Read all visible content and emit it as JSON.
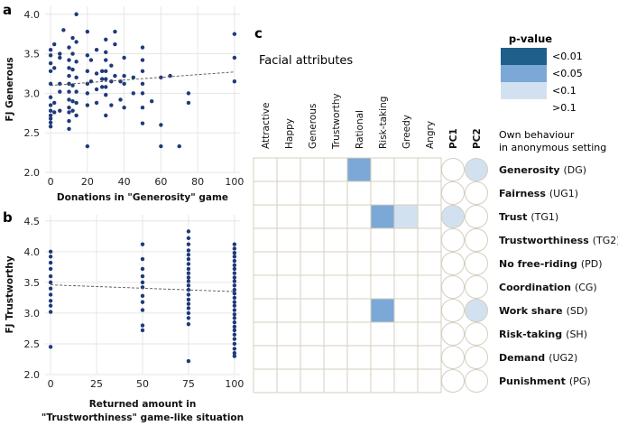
{
  "panel_labels": {
    "a": "a",
    "b": "b",
    "c": "c"
  },
  "chart_data": [
    {
      "type": "scatter",
      "id": "a",
      "xlabel": "Donations in \"Generosity\" game",
      "ylabel": "FJ Generous",
      "xlim": [
        -3,
        103
      ],
      "ylim": [
        2.0,
        4.1
      ],
      "xticks": [
        0,
        20,
        40,
        60,
        80,
        100
      ],
      "yticks": [
        2.0,
        2.5,
        3.0,
        3.5,
        4.0
      ],
      "ytick_labels": [
        "2.0",
        "2.5",
        "3.0",
        "3.5",
        "4.0"
      ],
      "trend": {
        "x": [
          0,
          100
        ],
        "y": [
          3.1,
          3.27
        ]
      },
      "points": [
        [
          0,
          3.55
        ],
        [
          0,
          3.48
        ],
        [
          0,
          3.38
        ],
        [
          0,
          3.28
        ],
        [
          0,
          3.12
        ],
        [
          0,
          2.95
        ],
        [
          0,
          2.85
        ],
        [
          0,
          2.78
        ],
        [
          0,
          2.72
        ],
        [
          0,
          2.68
        ],
        [
          0,
          2.63
        ],
        [
          0,
          2.58
        ],
        [
          2,
          3.62
        ],
        [
          2,
          3.32
        ],
        [
          2,
          2.88
        ],
        [
          2,
          2.76
        ],
        [
          5,
          3.5
        ],
        [
          5,
          3.45
        ],
        [
          5,
          3.12
        ],
        [
          5,
          3.02
        ],
        [
          5,
          2.78
        ],
        [
          7,
          3.8
        ],
        [
          10,
          3.58
        ],
        [
          10,
          3.42
        ],
        [
          10,
          3.32
        ],
        [
          10,
          3.22
        ],
        [
          10,
          3.12
        ],
        [
          10,
          3.02
        ],
        [
          10,
          2.92
        ],
        [
          10,
          2.82
        ],
        [
          10,
          2.76
        ],
        [
          10,
          2.65
        ],
        [
          10,
          2.55
        ],
        [
          12,
          3.7
        ],
        [
          12,
          3.5
        ],
        [
          12,
          3.3
        ],
        [
          12,
          3.1
        ],
        [
          12,
          2.9
        ],
        [
          12,
          2.78
        ],
        [
          14,
          4.0
        ],
        [
          14,
          3.65
        ],
        [
          14,
          3.4
        ],
        [
          14,
          3.2
        ],
        [
          14,
          3.02
        ],
        [
          14,
          2.88
        ],
        [
          14,
          2.72
        ],
        [
          20,
          3.78
        ],
        [
          20,
          3.48
        ],
        [
          20,
          3.28
        ],
        [
          20,
          3.12
        ],
        [
          20,
          3.0
        ],
        [
          20,
          2.85
        ],
        [
          20,
          2.33
        ],
        [
          22,
          3.42
        ],
        [
          22,
          3.15
        ],
        [
          25,
          3.55
        ],
        [
          25,
          3.25
        ],
        [
          25,
          3.05
        ],
        [
          25,
          2.88
        ],
        [
          28,
          3.28
        ],
        [
          28,
          3.18
        ],
        [
          28,
          3.08
        ],
        [
          30,
          3.68
        ],
        [
          30,
          3.52
        ],
        [
          30,
          3.42
        ],
        [
          30,
          3.28
        ],
        [
          30,
          3.18
        ],
        [
          30,
          3.08
        ],
        [
          30,
          2.98
        ],
        [
          30,
          2.72
        ],
        [
          33,
          3.35
        ],
        [
          33,
          3.15
        ],
        [
          33,
          2.85
        ],
        [
          35,
          3.78
        ],
        [
          35,
          3.62
        ],
        [
          35,
          3.22
        ],
        [
          38,
          3.15
        ],
        [
          38,
          2.92
        ],
        [
          40,
          3.45
        ],
        [
          40,
          3.22
        ],
        [
          40,
          3.12
        ],
        [
          40,
          2.82
        ],
        [
          45,
          3.2
        ],
        [
          45,
          3.0
        ],
        [
          50,
          3.58
        ],
        [
          50,
          3.42
        ],
        [
          50,
          3.28
        ],
        [
          50,
          3.12
        ],
        [
          50,
          3.0
        ],
        [
          50,
          2.82
        ],
        [
          50,
          2.62
        ],
        [
          55,
          2.9
        ],
        [
          60,
          3.2
        ],
        [
          60,
          2.6
        ],
        [
          60,
          2.33
        ],
        [
          65,
          3.22
        ],
        [
          70,
          2.33
        ],
        [
          75,
          3.0
        ],
        [
          75,
          2.88
        ],
        [
          100,
          3.75
        ],
        [
          100,
          3.45
        ],
        [
          100,
          3.15
        ]
      ]
    },
    {
      "type": "scatter",
      "id": "b",
      "xlabel": "Returned amount in",
      "xlabel2": "\"Trustworthiness\" game-like situation",
      "ylabel": "FJ Trustworthy",
      "xlim": [
        -3,
        103
      ],
      "ylim": [
        2.0,
        4.6
      ],
      "xticks": [
        0,
        25,
        50,
        75,
        100
      ],
      "yticks": [
        2.0,
        2.5,
        3.0,
        3.5,
        4.0,
        4.5
      ],
      "ytick_labels": [
        "2.0",
        "2.5",
        "3.0",
        "3.5",
        "4.0",
        "4.5"
      ],
      "trend": {
        "x": [
          0,
          100
        ],
        "y": [
          3.46,
          3.35
        ]
      },
      "points": [
        [
          0,
          4.0
        ],
        [
          0,
          3.92
        ],
        [
          0,
          3.82
        ],
        [
          0,
          3.72
        ],
        [
          0,
          3.6
        ],
        [
          0,
          3.5
        ],
        [
          0,
          3.4
        ],
        [
          0,
          3.3
        ],
        [
          0,
          3.2
        ],
        [
          0,
          3.12
        ],
        [
          0,
          3.02
        ],
        [
          0,
          2.45
        ],
        [
          50,
          4.12
        ],
        [
          50,
          3.88
        ],
        [
          50,
          3.72
        ],
        [
          50,
          3.6
        ],
        [
          50,
          3.5
        ],
        [
          50,
          3.42
        ],
        [
          50,
          3.28
        ],
        [
          50,
          3.18
        ],
        [
          50,
          3.05
        ],
        [
          50,
          2.8
        ],
        [
          50,
          2.72
        ],
        [
          75,
          4.33
        ],
        [
          75,
          4.22
        ],
        [
          75,
          4.12
        ],
        [
          75,
          4.02
        ],
        [
          75,
          3.95
        ],
        [
          75,
          3.88
        ],
        [
          75,
          3.8
        ],
        [
          75,
          3.72
        ],
        [
          75,
          3.65
        ],
        [
          75,
          3.58
        ],
        [
          75,
          3.52
        ],
        [
          75,
          3.45
        ],
        [
          75,
          3.38
        ],
        [
          75,
          3.3
        ],
        [
          75,
          3.22
        ],
        [
          75,
          3.15
        ],
        [
          75,
          3.08
        ],
        [
          75,
          3.0
        ],
        [
          75,
          2.92
        ],
        [
          75,
          2.82
        ],
        [
          75,
          2.22
        ],
        [
          100,
          4.12
        ],
        [
          100,
          4.05
        ],
        [
          100,
          3.98
        ],
        [
          100,
          3.92
        ],
        [
          100,
          3.85
        ],
        [
          100,
          3.78
        ],
        [
          100,
          3.72
        ],
        [
          100,
          3.65
        ],
        [
          100,
          3.58
        ],
        [
          100,
          3.52
        ],
        [
          100,
          3.45
        ],
        [
          100,
          3.38
        ],
        [
          100,
          3.32
        ],
        [
          100,
          3.25
        ],
        [
          100,
          3.18
        ],
        [
          100,
          3.12
        ],
        [
          100,
          3.05
        ],
        [
          100,
          2.98
        ],
        [
          100,
          2.92
        ],
        [
          100,
          2.85
        ],
        [
          100,
          2.78
        ],
        [
          100,
          2.72
        ],
        [
          100,
          2.65
        ],
        [
          100,
          2.58
        ],
        [
          100,
          2.5
        ],
        [
          100,
          2.42
        ],
        [
          100,
          2.35
        ],
        [
          100,
          2.3
        ]
      ]
    },
    {
      "type": "heatmap",
      "id": "c",
      "title": "Facial attributes",
      "columns": [
        "Attractive",
        "Happy",
        "Generous",
        "Trustworthy",
        "Rational",
        "Risk-taking",
        "Greedy",
        "Angry",
        "PC1",
        "PC2"
      ],
      "circle_columns": [
        "PC1",
        "PC2"
      ],
      "row_header": [
        "Own behaviour",
        "in anonymous setting"
      ],
      "rows": [
        {
          "bold": "Generosity",
          "code": "(DG)",
          "cells": [
            0,
            0,
            0,
            0,
            2,
            0,
            0,
            0,
            0,
            3
          ]
        },
        {
          "bold": "Fairness",
          "code": "(UG1)",
          "cells": [
            0,
            0,
            0,
            0,
            0,
            0,
            0,
            0,
            0,
            0
          ]
        },
        {
          "bold": "Trust",
          "code": "(TG1)",
          "cells": [
            0,
            0,
            0,
            0,
            0,
            2,
            3,
            0,
            3,
            0
          ]
        },
        {
          "bold": "Trustworthiness",
          "code": "(TG2)",
          "cells": [
            0,
            0,
            0,
            0,
            0,
            0,
            0,
            0,
            0,
            0
          ]
        },
        {
          "bold": "No free-riding",
          "code": "(PD)",
          "cells": [
            0,
            0,
            0,
            0,
            0,
            0,
            0,
            0,
            0,
            0
          ]
        },
        {
          "bold": "Coordination",
          "code": "(CG)",
          "cells": [
            0,
            0,
            0,
            0,
            0,
            0,
            0,
            0,
            0,
            0
          ]
        },
        {
          "bold": "Work share",
          "code": "(SD)",
          "cells": [
            0,
            0,
            0,
            0,
            0,
            2,
            0,
            0,
            0,
            3
          ]
        },
        {
          "bold": "Risk-taking",
          "code": "(SH)",
          "cells": [
            0,
            0,
            0,
            0,
            0,
            0,
            0,
            0,
            0,
            0
          ]
        },
        {
          "bold": "Demand",
          "code": "(UG2)",
          "cells": [
            0,
            0,
            0,
            0,
            0,
            0,
            0,
            0,
            0,
            0
          ]
        },
        {
          "bold": "Punishment",
          "code": "(PG)",
          "cells": [
            0,
            0,
            0,
            0,
            0,
            0,
            0,
            0,
            0,
            0
          ]
        }
      ],
      "legend": {
        "title": "p-value",
        "items": [
          {
            "label": "<0.01",
            "color": "#1f5f8b"
          },
          {
            "label": "<0.05",
            "color": "#7ba8d6"
          },
          {
            "label": "<0.1",
            "color": "#d2e1f0"
          },
          {
            "label": ">0.1",
            "color": "#ffffff"
          }
        ]
      }
    }
  ],
  "colors": {
    "point": "#1f3a7a",
    "grid": "#e6e6e6",
    "trend": "#555555",
    "cell_border": "#d5cfbf"
  }
}
